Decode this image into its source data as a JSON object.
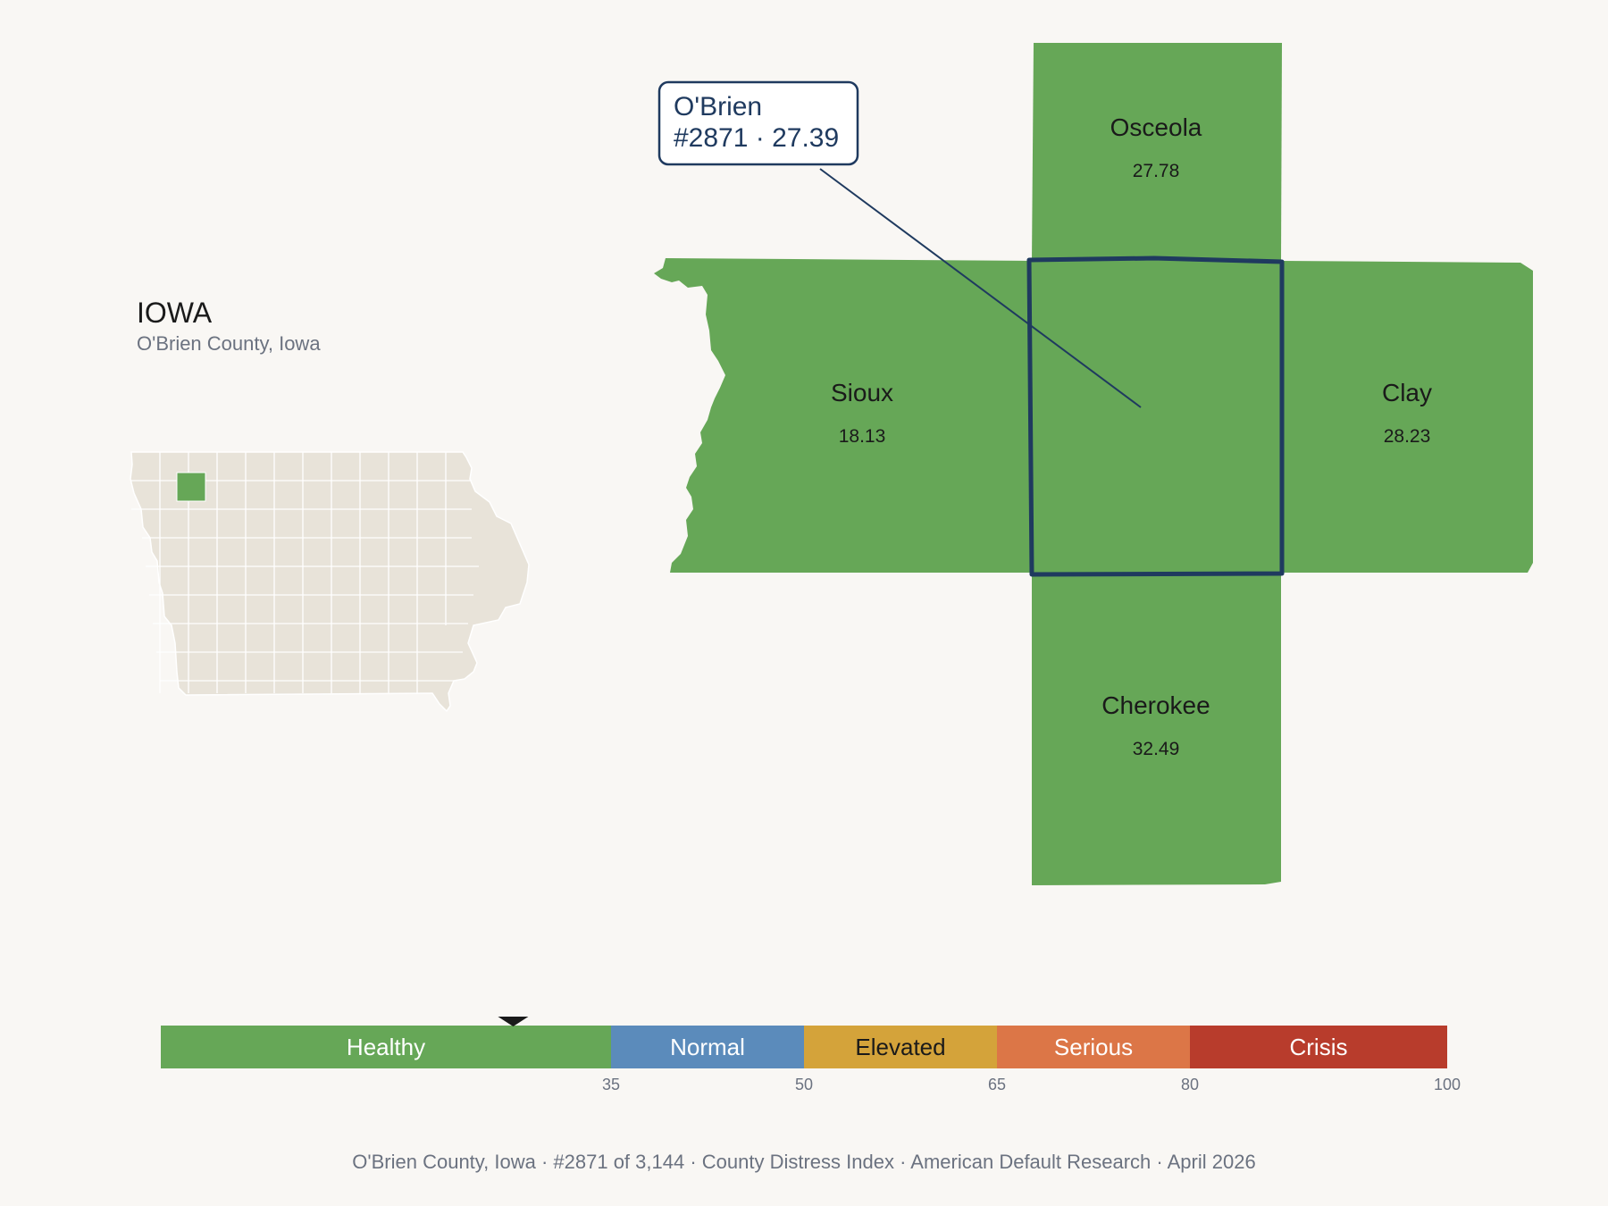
{
  "state": {
    "title": "IOWA",
    "subtitle": "O'Brien County, Iowa"
  },
  "focus": {
    "name": "O'Brien",
    "rank_score": "#2871 · 27.39",
    "score": 27.39
  },
  "neighbors": [
    {
      "id": "osceola",
      "name": "Osceola",
      "value": "27.78"
    },
    {
      "id": "sioux",
      "name": "Sioux",
      "value": "18.13"
    },
    {
      "id": "clay",
      "name": "Clay",
      "value": "28.23"
    },
    {
      "id": "cherokee",
      "name": "Cherokee",
      "value": "32.49"
    }
  ],
  "scale": {
    "min": 0,
    "max": 100,
    "bands": [
      {
        "label": "Healthy",
        "from": 0,
        "to": 35,
        "color": "#66a757",
        "text_color": "#ffffff"
      },
      {
        "label": "Normal",
        "from": 35,
        "to": 50,
        "color": "#5b8bbb",
        "text_color": "#ffffff"
      },
      {
        "label": "Elevated",
        "from": 50,
        "to": 65,
        "color": "#d4a33a",
        "text_color": "#1a1a1a"
      },
      {
        "label": "Serious",
        "from": 65,
        "to": 80,
        "color": "#dc7647",
        "text_color": "#ffffff"
      },
      {
        "label": "Crisis",
        "from": 80,
        "to": 100,
        "color": "#b83c2c",
        "text_color": "#ffffff"
      }
    ],
    "ticks": [
      "35",
      "50",
      "65",
      "80",
      "100"
    ]
  },
  "footer": "O'Brien County, Iowa  ·  #2871 of 3,144  ·  County Distress Index  ·  American Default Research  ·  April 2026",
  "colors": {
    "county_fill": "#66a757",
    "state_fill": "#e8e3d9",
    "highlight": "#1f3a5f",
    "background": "#f9f7f4"
  }
}
